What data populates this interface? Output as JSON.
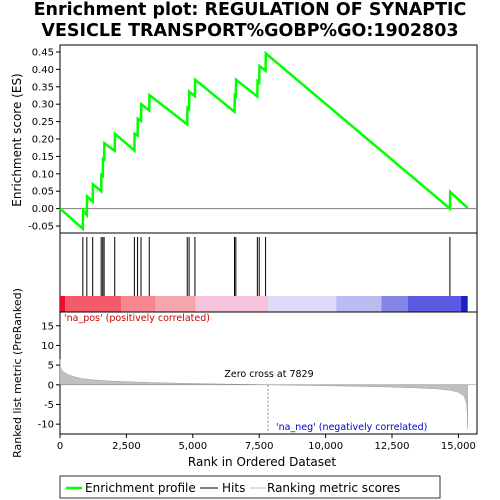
{
  "chart_data": {
    "type": "line",
    "title_lines": [
      "Enrichment plot: REGULATION OF SYNAPTIC",
      "VESICLE TRANSPORT%GOBP%GO:1902803"
    ],
    "colors": {
      "enrichment": "#00ff00",
      "hits": "#000000",
      "metric": "#c0c0c0",
      "pos_label": "#cc0000",
      "neg_label": "#0000cc",
      "zero_cross": "#808080"
    },
    "panel_es": {
      "ylabel": "Enrichment score (ES)",
      "ylim": [
        -0.07,
        0.47
      ],
      "yticks": [
        -0.05,
        0.0,
        0.05,
        0.1,
        0.15,
        0.2,
        0.25,
        0.3,
        0.35,
        0.4,
        0.45
      ],
      "ytick_labels": [
        "-0.05",
        "0.00",
        "0.05",
        "0.10",
        "0.15",
        "0.20",
        "0.25",
        "0.30",
        "0.35",
        "0.40",
        "0.45"
      ],
      "profile": [
        [
          0,
          0.0
        ],
        [
          860,
          -0.058
        ],
        [
          870,
          -0.005
        ],
        [
          1010,
          -0.018
        ],
        [
          1020,
          0.035
        ],
        [
          1230,
          0.02
        ],
        [
          1240,
          0.07
        ],
        [
          1550,
          0.05
        ],
        [
          1560,
          0.097
        ],
        [
          1610,
          0.094
        ],
        [
          1620,
          0.142
        ],
        [
          1660,
          0.14
        ],
        [
          1670,
          0.188
        ],
        [
          2060,
          0.166
        ],
        [
          2070,
          0.215
        ],
        [
          2800,
          0.167
        ],
        [
          2810,
          0.215
        ],
        [
          2920,
          0.21
        ],
        [
          2930,
          0.258
        ],
        [
          3050,
          0.252
        ],
        [
          3060,
          0.3
        ],
        [
          3360,
          0.282
        ],
        [
          3370,
          0.326
        ],
        [
          4790,
          0.242
        ],
        [
          4800,
          0.29
        ],
        [
          4860,
          0.287
        ],
        [
          4870,
          0.336
        ],
        [
          5080,
          0.323
        ],
        [
          5090,
          0.37
        ],
        [
          6570,
          0.278
        ],
        [
          6580,
          0.325
        ],
        [
          6620,
          0.322
        ],
        [
          6630,
          0.37
        ],
        [
          7430,
          0.322
        ],
        [
          7440,
          0.366
        ],
        [
          7500,
          0.362
        ],
        [
          7510,
          0.41
        ],
        [
          7740,
          0.396
        ],
        [
          7750,
          0.446
        ],
        [
          14680,
          0.0
        ],
        [
          14690,
          0.048
        ],
        [
          15350,
          0.002
        ]
      ]
    },
    "hits_x": [
      860,
      1010,
      1230,
      1550,
      1610,
      1660,
      2060,
      2800,
      2920,
      3050,
      3360,
      4790,
      4860,
      5080,
      6570,
      6620,
      7430,
      7500,
      7740,
      14680
    ],
    "panel_metric": {
      "ylabel": "Ranked list metric (PreRanked)",
      "ylim": [
        -12.5,
        18.5
      ],
      "yticks": [
        -10,
        -5,
        0,
        5,
        10,
        15
      ],
      "ytick_labels": [
        "-10",
        "-5",
        "0",
        "5",
        "10",
        "15"
      ],
      "curve": [
        [
          0,
          6.5
        ],
        [
          20,
          4.5
        ],
        [
          60,
          3.8
        ],
        [
          150,
          3.2
        ],
        [
          300,
          2.6
        ],
        [
          500,
          2.1
        ],
        [
          800,
          1.6
        ],
        [
          1200,
          1.3
        ],
        [
          1800,
          1.0
        ],
        [
          2500,
          0.8
        ],
        [
          3500,
          0.55
        ],
        [
          4500,
          0.4
        ],
        [
          5500,
          0.28
        ],
        [
          6500,
          0.16
        ],
        [
          7300,
          0.07
        ],
        [
          7829,
          0.0
        ],
        [
          8500,
          -0.08
        ],
        [
          9500,
          -0.18
        ],
        [
          10500,
          -0.3
        ],
        [
          11500,
          -0.42
        ],
        [
          12500,
          -0.58
        ],
        [
          13500,
          -0.8
        ],
        [
          14200,
          -1.05
        ],
        [
          14700,
          -1.4
        ],
        [
          15000,
          -1.9
        ],
        [
          15200,
          -2.8
        ],
        [
          15300,
          -4.6
        ],
        [
          15330,
          -7.0
        ],
        [
          15350,
          -11.2
        ]
      ],
      "zero_cross_label": "Zero cross at 7829",
      "zero_cross_x": 7829,
      "pos_label": "'na_pos' (positively correlated)",
      "neg_label": "'na_neg' (negatively correlated)"
    },
    "x_axis": {
      "label": "Rank in Ordered Dataset",
      "xlim": [
        0,
        15700
      ],
      "xticks": [
        0,
        2500,
        5000,
        7500,
        10000,
        12500,
        15000
      ],
      "xtick_labels": [
        "0",
        "2,500",
        "5,000",
        "7,500",
        "10,000",
        "12,500",
        "15,000"
      ],
      "max_rank": 15350
    },
    "color_bar_segments": [
      {
        "from": 0,
        "to": 200,
        "color": "#e8102a"
      },
      {
        "from": 200,
        "to": 2300,
        "color": "#f55a6a"
      },
      {
        "from": 2300,
        "to": 3600,
        "color": "#f7868f"
      },
      {
        "from": 3600,
        "to": 5100,
        "color": "#f5a5ad"
      },
      {
        "from": 5100,
        "to": 7829,
        "color": "#f7c3dd"
      },
      {
        "from": 7829,
        "to": 10400,
        "color": "#dcdcf8"
      },
      {
        "from": 10400,
        "to": 12100,
        "color": "#bbbbf2"
      },
      {
        "from": 12100,
        "to": 13100,
        "color": "#8585e8"
      },
      {
        "from": 13100,
        "to": 15100,
        "color": "#5a5ae0"
      },
      {
        "from": 15100,
        "to": 15350,
        "color": "#1e1ec8"
      }
    ],
    "legend": [
      {
        "label": "Enrichment profile",
        "kind": "line",
        "color": "#00ff00"
      },
      {
        "label": "Hits",
        "kind": "line",
        "color": "#000000"
      },
      {
        "label": "Ranking metric scores",
        "kind": "line",
        "color": "#c0c0c0"
      }
    ]
  }
}
